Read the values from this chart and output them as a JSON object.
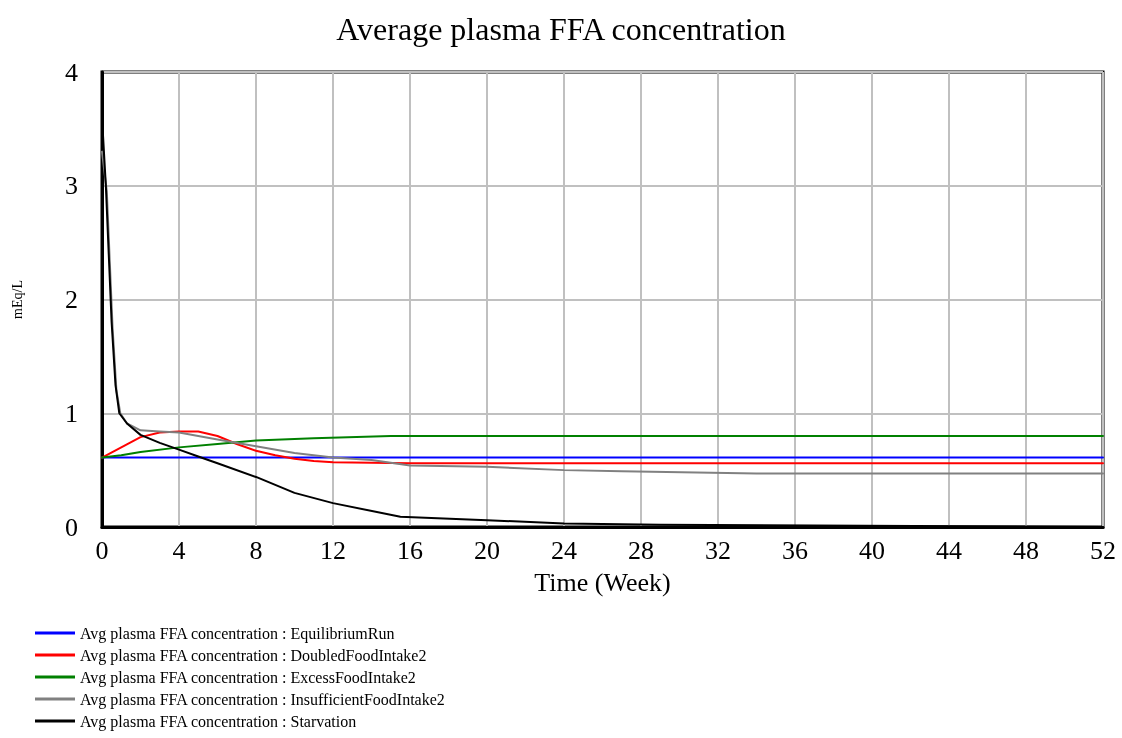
{
  "chart_data": {
    "type": "line",
    "title": "Average plasma FFA concentration",
    "xlabel": "Time (Week)",
    "ylabel": "mEq/L",
    "xlim": [
      0,
      52
    ],
    "xticks": [
      0,
      4,
      8,
      12,
      16,
      20,
      24,
      28,
      32,
      36,
      40,
      44,
      48,
      52
    ],
    "ylim": [
      0,
      4
    ],
    "yticks": [
      0,
      1,
      2,
      3,
      4
    ],
    "grid": true,
    "legend": "bottom",
    "marker": "none",
    "line_style": "solid",
    "series": [
      {
        "name": "Avg plasma FFA concentration : EquilibriumRun",
        "color": "#0000ff",
        "x": [
          0,
          52
        ],
        "values": [
          0.61,
          0.61
        ]
      },
      {
        "name": "Avg plasma FFA concentration : DoubledFoodIntake2",
        "color": "#ff0000",
        "x": [
          0,
          1,
          2,
          3,
          4,
          5,
          6,
          7,
          8,
          9,
          10,
          11,
          12,
          16,
          52
        ],
        "values": [
          0.61,
          0.7,
          0.79,
          0.83,
          0.84,
          0.84,
          0.8,
          0.73,
          0.67,
          0.63,
          0.6,
          0.58,
          0.57,
          0.56,
          0.56
        ]
      },
      {
        "name": "Avg plasma FFA concentration : ExcessFoodIntake2",
        "color": "#008000",
        "x": [
          0,
          1,
          2,
          4,
          6,
          8,
          11,
          15,
          52
        ],
        "values": [
          0.61,
          0.63,
          0.66,
          0.7,
          0.73,
          0.76,
          0.78,
          0.8,
          0.8
        ]
      },
      {
        "name": "Avg plasma FFA concentration : InsufficientFoodIntake2",
        "color": "#808080",
        "x": [
          0,
          0.25,
          0.4,
          0.55,
          0.75,
          0.95,
          1.3,
          2,
          3,
          4,
          6,
          8,
          10,
          12,
          14,
          16,
          20,
          24,
          27,
          34,
          52
        ],
        "values": [
          3.3,
          2.95,
          2.35,
          1.75,
          1.2,
          1.0,
          0.91,
          0.85,
          0.84,
          0.83,
          0.77,
          0.71,
          0.65,
          0.61,
          0.59,
          0.54,
          0.53,
          0.5,
          0.49,
          0.47,
          0.47
        ]
      },
      {
        "name": "Avg plasma FFA concentration : Starvation",
        "color": "#000000",
        "x": [
          0,
          0.2,
          0.35,
          0.5,
          0.7,
          0.9,
          1.3,
          2,
          3,
          4,
          5,
          6,
          8,
          10,
          12,
          15.5,
          20,
          24,
          29,
          52
        ],
        "values": [
          3.6,
          3.0,
          2.4,
          1.8,
          1.25,
          1.0,
          0.91,
          0.81,
          0.74,
          0.68,
          0.62,
          0.56,
          0.44,
          0.3,
          0.21,
          0.09,
          0.06,
          0.03,
          0.02,
          0
        ]
      }
    ]
  }
}
